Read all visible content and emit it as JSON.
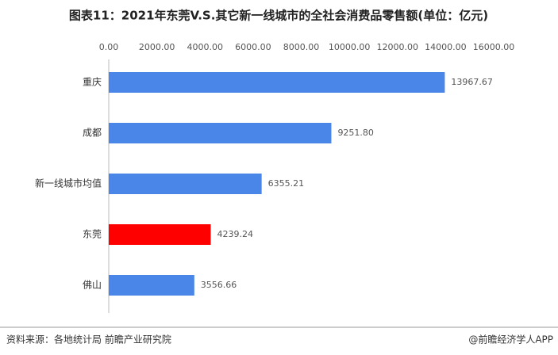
{
  "chart_data": {
    "type": "hbar",
    "title": "图表11：2021年东莞V.S.其它新一线城市的全社会消费品零售额(单位：亿元)",
    "categories": [
      "重庆",
      "成都",
      "新一线城市均值",
      "东莞",
      "佛山"
    ],
    "values": [
      13967.67,
      9251.8,
      6355.21,
      4239.24,
      3556.66
    ],
    "value_labels": [
      "13967.67",
      "9251.80",
      "6355.21",
      "4239.24",
      "3556.66"
    ],
    "colors": [
      "#4a86e8",
      "#4a86e8",
      "#4a86e8",
      "#ff0000",
      "#4a86e8"
    ],
    "xlim": [
      0,
      16000
    ],
    "xticks": [
      {
        "value": 0,
        "label": "0.00"
      },
      {
        "value": 2000,
        "label": "2000.00"
      },
      {
        "value": 4000,
        "label": "4000.00"
      },
      {
        "value": 6000,
        "label": "6000.00"
      },
      {
        "value": 8000,
        "label": "8000.00"
      },
      {
        "value": 10000,
        "label": "10000.00"
      },
      {
        "value": 12000,
        "label": "12000.00"
      },
      {
        "value": 14000,
        "label": "14000.00"
      },
      {
        "value": 16000,
        "label": "16000.00"
      }
    ],
    "source": "资料来源：各地统计局 前瞻产业研究院",
    "credit": "@前瞻经济学人APP"
  }
}
